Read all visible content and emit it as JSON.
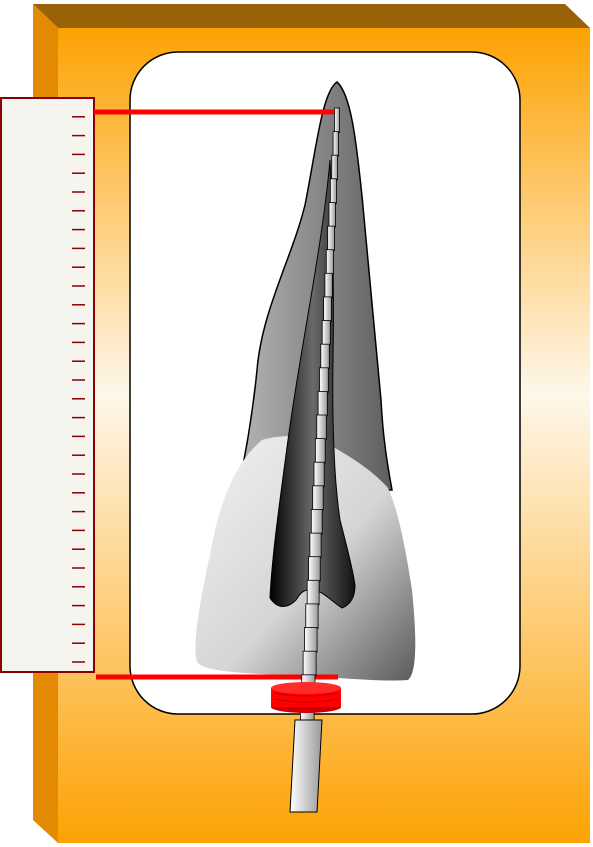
{
  "figure": {
    "kind": "endodontic working length measurement",
    "labels": []
  },
  "colors": {
    "board_front_top": "#fda203",
    "board_front_mid": "#fef7ea",
    "board_top_face": "#9a6206",
    "board_side_face": "#e38a02",
    "ruler_fill": "#f5f4ee",
    "ruler_border": "#8b0000",
    "ruler_ticks": "#8b0000",
    "measure_lines": "#ff0000",
    "stopper": "#ff0000",
    "tooth_root": "#8c8c8c",
    "tooth_crown": "#d9d9d9",
    "pulp_canal": "#2a2a2a",
    "file_instrument": "#e6e6e6"
  },
  "ruler": {
    "tick_count": 31
  },
  "instrument": {
    "file_segments": 26,
    "rubber_stop": true
  }
}
